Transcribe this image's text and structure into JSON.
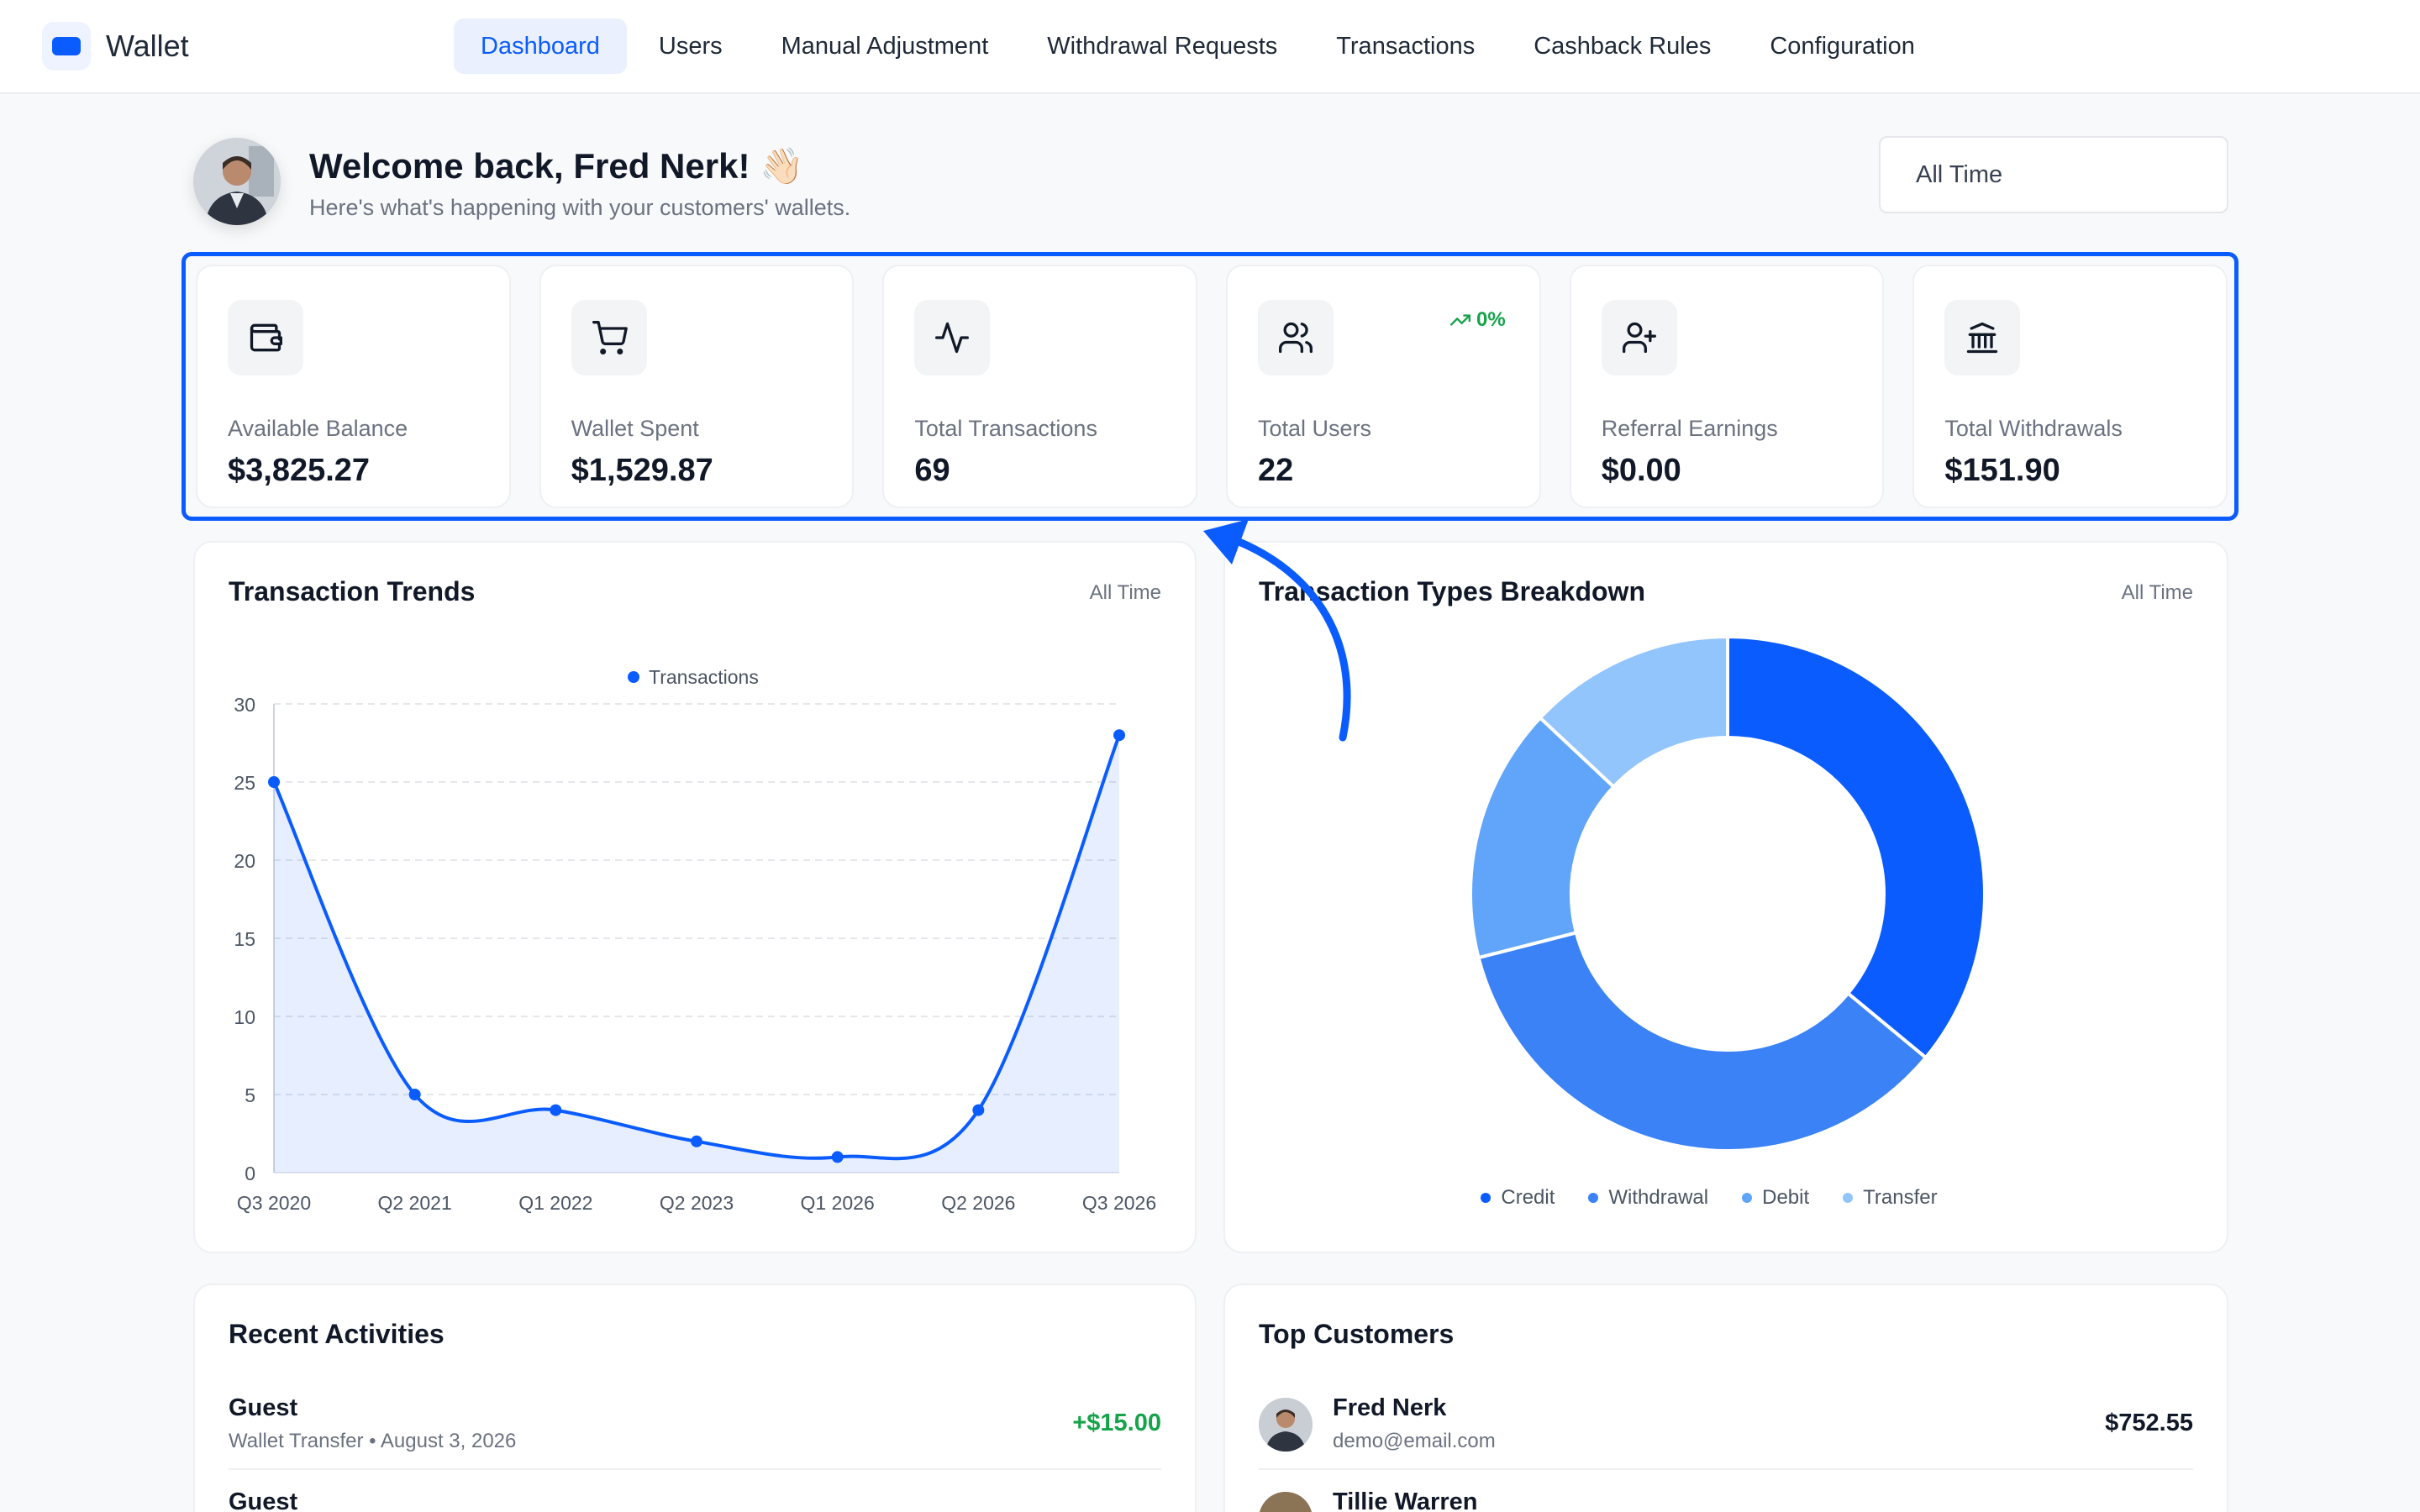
{
  "app": {
    "name": "Wallet"
  },
  "nav": {
    "items": [
      {
        "label": "Dashboard",
        "active": true
      },
      {
        "label": "Users"
      },
      {
        "label": "Manual Adjustment"
      },
      {
        "label": "Withdrawal Requests"
      },
      {
        "label": "Transactions"
      },
      {
        "label": "Cashback Rules"
      },
      {
        "label": "Configuration"
      }
    ]
  },
  "welcome": {
    "title": "Welcome back, Fred Nerk! 👋🏻",
    "subtitle": "Here's what's happening with your customers' wallets."
  },
  "date_range": {
    "value": "All Time"
  },
  "stats": [
    {
      "label": "Available Balance",
      "value": "$3,825.27",
      "icon": "wallet-icon"
    },
    {
      "label": "Wallet Spent",
      "value": "$1,529.87",
      "icon": "cart-icon"
    },
    {
      "label": "Total Transactions",
      "value": "69",
      "icon": "activity-icon"
    },
    {
      "label": "Total Users",
      "value": "22",
      "icon": "users-icon",
      "trend": "0%"
    },
    {
      "label": "Referral Earnings",
      "value": "$0.00",
      "icon": "user-plus-icon"
    },
    {
      "label": "Total Withdrawals",
      "value": "$151.90",
      "icon": "bank-icon"
    }
  ],
  "trends_panel": {
    "title": "Transaction Trends",
    "range": "All Time"
  },
  "types_panel": {
    "title": "Transaction Types Breakdown",
    "range": "All Time"
  },
  "activities": {
    "title": "Recent Activities",
    "items": [
      {
        "name": "Guest",
        "detail": "Wallet Transfer • August 3, 2026",
        "amount": "+$15.00"
      },
      {
        "name": "Guest",
        "detail": "",
        "amount": ""
      }
    ]
  },
  "customers": {
    "title": "Top Customers",
    "items": [
      {
        "name": "Fred Nerk",
        "email": "demo@email.com",
        "amount": "$752.55"
      },
      {
        "name": "Tillie Warren",
        "email": "",
        "amount": ""
      }
    ]
  },
  "colors": {
    "accent": "#0b5cff",
    "positive": "#16a34a",
    "credit": "#0b5cff",
    "withdrawal": "#3b82f6",
    "debit": "#60a5fa",
    "transfer": "#93c5fd"
  },
  "chart_data": [
    {
      "type": "area",
      "title": "Transaction Trends",
      "categories": [
        "Q3 2020",
        "Q2 2021",
        "Q1 2022",
        "Q2 2023",
        "Q1 2026",
        "Q2 2026",
        "Q3 2026"
      ],
      "series": [
        {
          "name": "Transactions",
          "values": [
            25,
            5,
            4,
            2,
            1,
            4,
            28
          ]
        }
      ],
      "ylim": [
        0,
        30
      ],
      "yticks": [
        0,
        5,
        10,
        15,
        20,
        25,
        30
      ],
      "grid": true,
      "legend": "top-center"
    },
    {
      "type": "pie",
      "title": "Transaction Types Breakdown",
      "donut": true,
      "labels": [
        "Credit",
        "Withdrawal",
        "Debit",
        "Transfer"
      ],
      "values": [
        36,
        35,
        16,
        13
      ],
      "legend": "bottom"
    }
  ]
}
